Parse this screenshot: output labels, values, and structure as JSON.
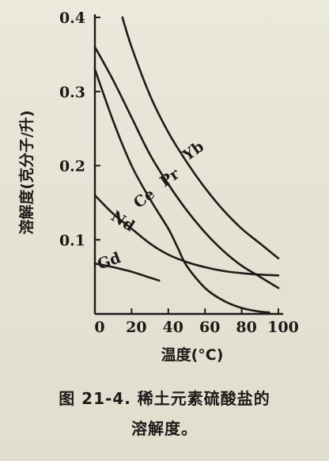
{
  "chart_data": {
    "type": "line",
    "xlabel": "温度(°C)",
    "ylabel": "溶解度(克分子/升)",
    "xlim": [
      0,
      100
    ],
    "ylim": [
      0,
      0.4
    ],
    "x_ticks": [
      "0",
      "20",
      "40",
      "60",
      "80",
      "100"
    ],
    "y_ticks": [
      "0.1",
      "0.2",
      "0.3",
      "0.4"
    ],
    "grid": false,
    "series": [
      {
        "name": "Yb",
        "x": [
          15,
          20,
          30,
          40,
          50,
          60,
          70,
          80,
          90,
          100
        ],
        "y": [
          0.4,
          0.36,
          0.295,
          0.245,
          0.205,
          0.17,
          0.14,
          0.115,
          0.095,
          0.075
        ]
      },
      {
        "name": "Pr",
        "x": [
          0,
          10,
          20,
          30,
          40,
          50,
          60,
          70,
          80,
          90,
          100
        ],
        "y": [
          0.36,
          0.315,
          0.265,
          0.215,
          0.175,
          0.14,
          0.11,
          0.085,
          0.065,
          0.05,
          0.035
        ]
      },
      {
        "name": "Ce",
        "x": [
          0,
          10,
          20,
          30,
          40,
          45,
          50,
          60,
          70,
          80,
          90,
          95
        ],
        "y": [
          0.33,
          0.26,
          0.2,
          0.155,
          0.115,
          0.09,
          0.065,
          0.035,
          0.018,
          0.008,
          0.003,
          0.002
        ]
      },
      {
        "name": "Nd",
        "x": [
          0,
          10,
          20,
          30,
          40,
          50,
          60,
          70,
          80,
          90,
          100
        ],
        "y": [
          0.16,
          0.135,
          0.115,
          0.095,
          0.08,
          0.07,
          0.063,
          0.058,
          0.055,
          0.053,
          0.052
        ]
      },
      {
        "name": "Gd",
        "x": [
          0,
          10,
          20,
          30,
          35
        ],
        "y": [
          0.068,
          0.063,
          0.057,
          0.049,
          0.045
        ]
      }
    ]
  },
  "caption": {
    "line1": "图 21-4. 稀土元素硫酸盐的",
    "line2": "溶解度。"
  }
}
